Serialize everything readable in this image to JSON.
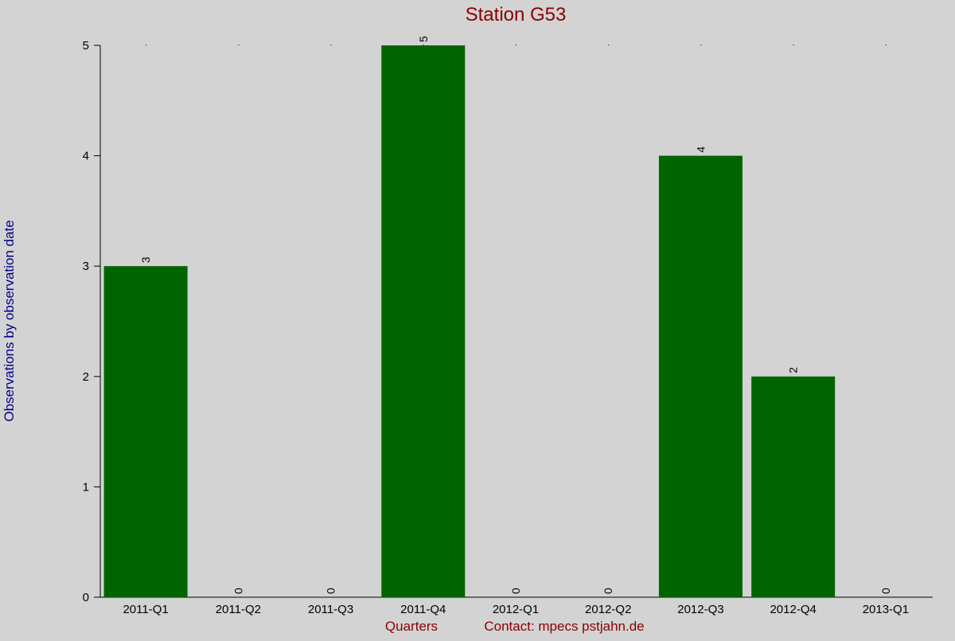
{
  "chart_data": {
    "type": "bar",
    "title": "Station G53",
    "ylabel": "Observations by observation date",
    "xlabel": "Quarters",
    "footer_contact": "Contact: mpecs pstjahn.de",
    "categories": [
      "2011-Q1",
      "2011-Q2",
      "2011-Q3",
      "2011-Q4",
      "2012-Q1",
      "2012-Q2",
      "2012-Q3",
      "2012-Q4",
      "2013-Q1"
    ],
    "values": [
      3,
      0,
      0,
      5,
      0,
      0,
      4,
      2,
      0
    ],
    "data_labels": [
      "3",
      "0",
      "0",
      "5",
      "0",
      "0",
      "4",
      "2",
      "0"
    ],
    "ylim": [
      0,
      5
    ],
    "yticks": [
      "0",
      "1",
      "2",
      "3",
      "4",
      "5"
    ],
    "grid": false,
    "colors": {
      "background": "#d3d3d3",
      "bar": "#006400",
      "title": "#8b0000",
      "ylabel": "#00008b",
      "xlabel": "#8b0000",
      "axis": "#000000"
    }
  }
}
